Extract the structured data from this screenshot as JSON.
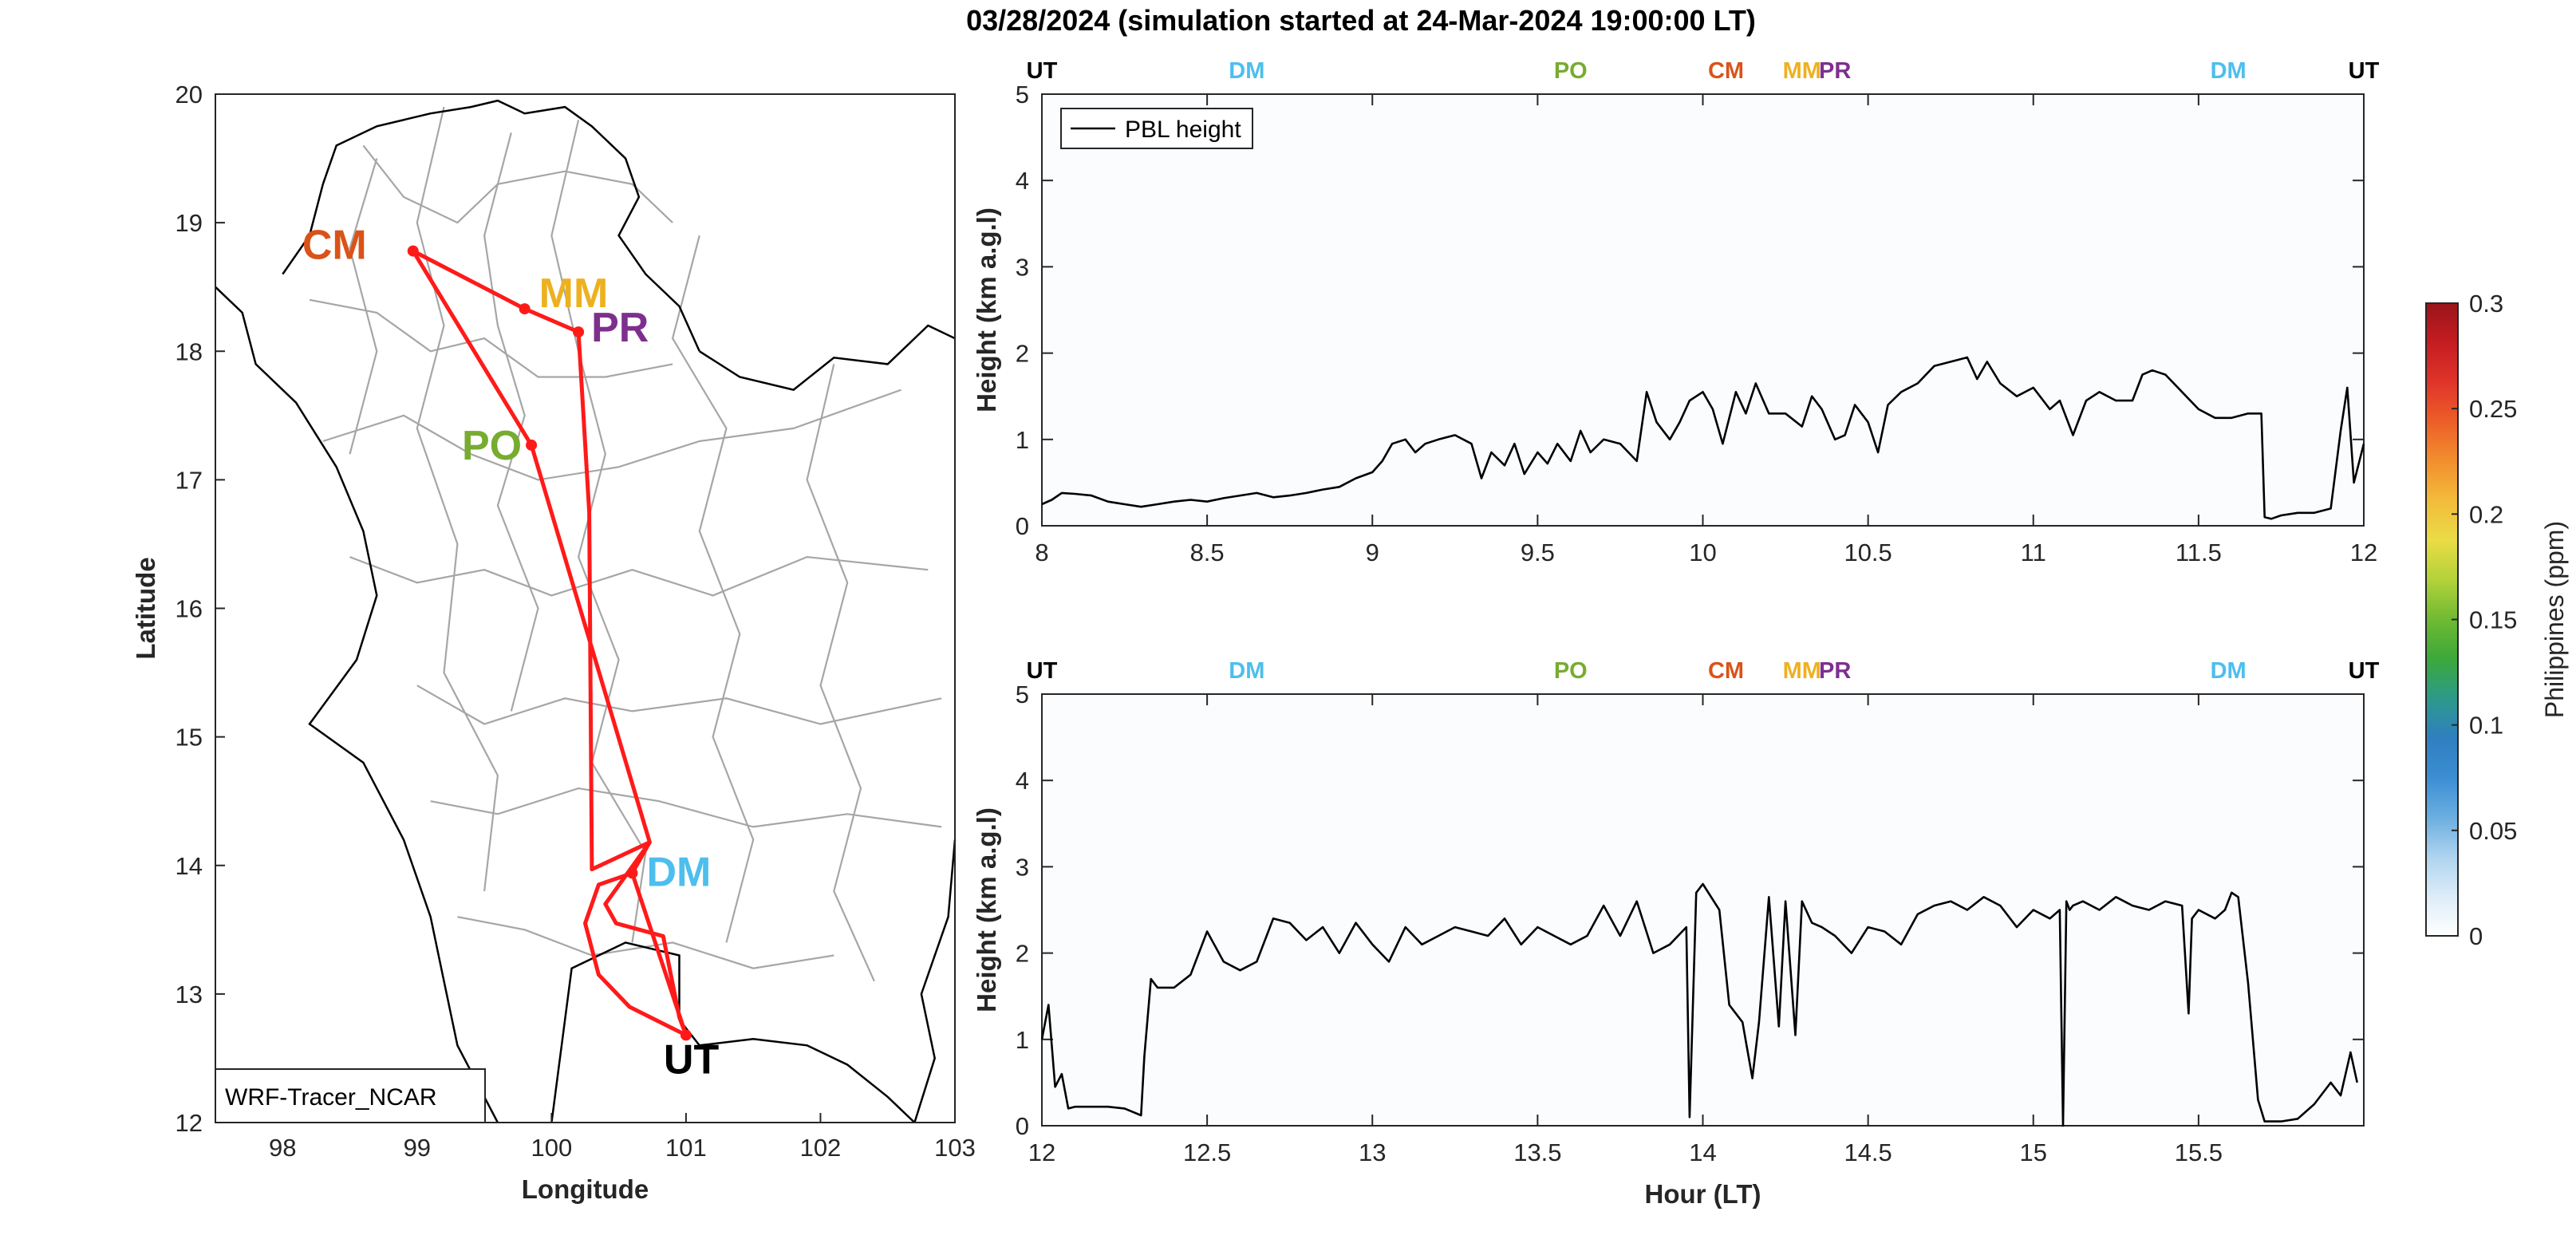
{
  "figure_title": "03/28/2024 (simulation started at 24-Mar-2024 19:00:00 LT)",
  "colors": {
    "track": "#ff1a1a",
    "UT": "#000000",
    "DM": "#4dbeee",
    "PO": "#77ac30",
    "CM": "#d95319",
    "MM": "#edb120",
    "PR": "#7e2f8e",
    "pbl": "#000000",
    "axis": "#262626",
    "border": "#a6a6a6"
  },
  "chart_data": [
    {
      "type": "line",
      "name": "map",
      "xlabel": "Longitude",
      "ylabel": "Latitude",
      "xlim": [
        97.5,
        103
      ],
      "ylim": [
        12,
        20
      ],
      "x_ticks": [
        "98",
        "99",
        "100",
        "101",
        "102",
        "103"
      ],
      "y_ticks": [
        "12",
        "13",
        "14",
        "15",
        "16",
        "17",
        "18",
        "19",
        "20"
      ],
      "legend": "WRF-Tracer_NCAR",
      "sites": [
        {
          "label": "CM",
          "lon": 98.97,
          "lat": 18.78
        },
        {
          "label": "MM",
          "lon": 99.8,
          "lat": 18.33
        },
        {
          "label": "PR",
          "lon": 100.2,
          "lat": 18.15
        },
        {
          "label": "PO",
          "lon": 99.85,
          "lat": 17.27
        },
        {
          "label": "DM",
          "lon": 100.6,
          "lat": 13.94
        },
        {
          "label": "UT",
          "lon": 101.0,
          "lat": 12.68
        }
      ],
      "route": [
        [
          101.0,
          12.68
        ],
        [
          100.6,
          13.94
        ],
        [
          100.73,
          14.18
        ],
        [
          99.85,
          17.27
        ],
        [
          98.97,
          18.78
        ],
        [
          99.8,
          18.33
        ],
        [
          100.2,
          18.15
        ],
        [
          100.28,
          16.75
        ],
        [
          100.3,
          13.97
        ],
        [
          100.73,
          14.18
        ],
        [
          100.4,
          13.7
        ],
        [
          100.48,
          13.55
        ],
        [
          100.83,
          13.45
        ],
        [
          100.95,
          12.82
        ],
        [
          101.0,
          12.68
        ],
        [
          100.58,
          12.9
        ],
        [
          100.35,
          13.15
        ],
        [
          100.25,
          13.55
        ],
        [
          100.35,
          13.85
        ],
        [
          100.6,
          13.94
        ]
      ]
    },
    {
      "type": "line",
      "name": "top",
      "xlim": [
        8,
        12
      ],
      "ylim": [
        0,
        5
      ],
      "ylabel": "Height (km a.g.l)",
      "x_ticks": [
        "8",
        "8.5",
        "9",
        "9.5",
        "10",
        "10.5",
        "11",
        "11.5",
        "12"
      ],
      "y_ticks": [
        "0",
        "1",
        "2",
        "3",
        "4",
        "5"
      ],
      "legend": "PBL height",
      "site_markers": [
        {
          "label": "UT",
          "x": 8.0
        },
        {
          "label": "DM",
          "x": 8.62
        },
        {
          "label": "PO",
          "x": 9.6
        },
        {
          "label": "CM",
          "x": 10.07
        },
        {
          "label": "MM",
          "x": 10.3
        },
        {
          "label": "PR",
          "x": 10.4
        },
        {
          "label": "DM",
          "x": 11.59
        },
        {
          "label": "UT",
          "x": 12.0
        }
      ],
      "series": [
        {
          "name": "PBL height",
          "x": [
            8.0,
            8.03,
            8.06,
            8.1,
            8.15,
            8.2,
            8.25,
            8.3,
            8.35,
            8.4,
            8.45,
            8.5,
            8.55,
            8.6,
            8.65,
            8.7,
            8.75,
            8.8,
            8.85,
            8.9,
            8.95,
            9.0,
            9.03,
            9.06,
            9.1,
            9.13,
            9.16,
            9.2,
            9.25,
            9.3,
            9.33,
            9.36,
            9.4,
            9.43,
            9.46,
            9.5,
            9.53,
            9.56,
            9.6,
            9.63,
            9.66,
            9.7,
            9.75,
            9.8,
            9.83,
            9.86,
            9.9,
            9.93,
            9.96,
            10.0,
            10.03,
            10.06,
            10.1,
            10.13,
            10.16,
            10.2,
            10.25,
            10.3,
            10.33,
            10.36,
            10.4,
            10.43,
            10.46,
            10.5,
            10.53,
            10.56,
            10.6,
            10.65,
            10.7,
            10.75,
            10.8,
            10.83,
            10.86,
            10.9,
            10.95,
            11.0,
            11.05,
            11.08,
            11.12,
            11.16,
            11.2,
            11.25,
            11.3,
            11.33,
            11.36,
            11.4,
            11.45,
            11.5,
            11.55,
            11.6,
            11.65,
            11.69,
            11.7,
            11.72,
            11.75,
            11.8,
            11.85,
            11.9,
            11.93,
            11.95,
            11.97,
            12.0
          ],
          "y": [
            0.25,
            0.3,
            0.38,
            0.37,
            0.35,
            0.28,
            0.25,
            0.22,
            0.25,
            0.28,
            0.3,
            0.28,
            0.32,
            0.35,
            0.38,
            0.33,
            0.35,
            0.38,
            0.42,
            0.45,
            0.55,
            0.62,
            0.75,
            0.95,
            1.0,
            0.85,
            0.95,
            1.0,
            1.05,
            0.95,
            0.55,
            0.85,
            0.7,
            0.95,
            0.6,
            0.85,
            0.72,
            0.95,
            0.75,
            1.1,
            0.85,
            1.0,
            0.95,
            0.75,
            1.55,
            1.2,
            1.0,
            1.2,
            1.45,
            1.55,
            1.35,
            0.95,
            1.55,
            1.3,
            1.65,
            1.3,
            1.3,
            1.15,
            1.5,
            1.35,
            1.0,
            1.05,
            1.4,
            1.2,
            0.85,
            1.4,
            1.55,
            1.65,
            1.85,
            1.9,
            1.95,
            1.7,
            1.9,
            1.65,
            1.5,
            1.6,
            1.35,
            1.45,
            1.05,
            1.45,
            1.55,
            1.45,
            1.45,
            1.75,
            1.8,
            1.75,
            1.55,
            1.35,
            1.25,
            1.25,
            1.3,
            1.3,
            0.1,
            0.08,
            0.12,
            0.15,
            0.15,
            0.2,
            1.1,
            1.6,
            0.5,
            0.95
          ]
        }
      ]
    },
    {
      "type": "line",
      "name": "bottom",
      "xlim": [
        12,
        16
      ],
      "ylim": [
        0,
        5
      ],
      "xlabel": "Hour (LT)",
      "ylabel": "Height (km a.g.l)",
      "x_ticks": [
        "12",
        "12.5",
        "13",
        "13.5",
        "14",
        "14.5",
        "15",
        "15.5"
      ],
      "y_ticks": [
        "0",
        "1",
        "2",
        "3",
        "4",
        "5"
      ],
      "site_markers": [
        {
          "label": "UT",
          "x": 12.0
        },
        {
          "label": "DM",
          "x": 12.62
        },
        {
          "label": "PO",
          "x": 13.6
        },
        {
          "label": "CM",
          "x": 14.07
        },
        {
          "label": "MM",
          "x": 14.3
        },
        {
          "label": "PR",
          "x": 14.4
        },
        {
          "label": "DM",
          "x": 15.59
        },
        {
          "label": "UT",
          "x": 16.0
        }
      ],
      "series": [
        {
          "name": "PBL height",
          "x": [
            12.0,
            12.02,
            12.04,
            12.06,
            12.08,
            12.1,
            12.2,
            12.25,
            12.3,
            12.31,
            12.33,
            12.35,
            12.4,
            12.45,
            12.5,
            12.55,
            12.6,
            12.65,
            12.7,
            12.75,
            12.8,
            12.85,
            12.9,
            12.95,
            13.0,
            13.05,
            13.1,
            13.15,
            13.2,
            13.25,
            13.3,
            13.35,
            13.4,
            13.45,
            13.5,
            13.55,
            13.6,
            13.65,
            13.7,
            13.75,
            13.8,
            13.85,
            13.9,
            13.95,
            13.96,
            13.98,
            14.0,
            14.05,
            14.08,
            14.12,
            14.15,
            14.17,
            14.2,
            14.23,
            14.25,
            14.28,
            14.3,
            14.33,
            14.36,
            14.4,
            14.45,
            14.5,
            14.55,
            14.6,
            14.65,
            14.7,
            14.75,
            14.8,
            14.85,
            14.9,
            14.95,
            15.0,
            15.05,
            15.08,
            15.09,
            15.1,
            15.11,
            15.12,
            15.15,
            15.2,
            15.25,
            15.3,
            15.35,
            15.4,
            15.45,
            15.47,
            15.48,
            15.5,
            15.55,
            15.58,
            15.6,
            15.62,
            15.65,
            15.68,
            15.7,
            15.75,
            15.8,
            15.85,
            15.9,
            15.93,
            15.96,
            15.98
          ],
          "y": [
            1.0,
            1.4,
            0.45,
            0.6,
            0.2,
            0.22,
            0.22,
            0.2,
            0.12,
            0.8,
            1.7,
            1.6,
            1.6,
            1.75,
            2.25,
            1.9,
            1.8,
            1.9,
            2.4,
            2.35,
            2.15,
            2.3,
            2.0,
            2.35,
            2.1,
            1.9,
            2.3,
            2.1,
            2.2,
            2.3,
            2.25,
            2.2,
            2.4,
            2.1,
            2.3,
            2.2,
            2.1,
            2.2,
            2.55,
            2.2,
            2.6,
            2.0,
            2.1,
            2.3,
            0.1,
            2.7,
            2.8,
            2.5,
            1.4,
            1.2,
            0.55,
            1.2,
            2.65,
            1.15,
            2.6,
            1.05,
            2.6,
            2.35,
            2.3,
            2.2,
            2.0,
            2.3,
            2.25,
            2.1,
            2.45,
            2.55,
            2.6,
            2.5,
            2.65,
            2.55,
            2.3,
            2.5,
            2.4,
            2.5,
            0.0,
            2.6,
            2.5,
            2.55,
            2.6,
            2.5,
            2.65,
            2.55,
            2.5,
            2.6,
            2.55,
            1.3,
            2.4,
            2.5,
            2.4,
            2.5,
            2.7,
            2.65,
            1.65,
            0.3,
            0.05,
            0.05,
            0.08,
            0.25,
            0.5,
            0.35,
            0.85,
            0.5
          ]
        }
      ]
    },
    {
      "type": "heatmap",
      "name": "colorbar",
      "label": "Philippines (ppm)",
      "range": [
        0,
        0.3
      ],
      "ticks": [
        "0",
        "0.05",
        "0.1",
        "0.15",
        "0.2",
        "0.25",
        "0.3"
      ],
      "colormap": [
        "#ffffff",
        "#dcecf8",
        "#aed3ef",
        "#6aaee0",
        "#3b8ed3",
        "#2f7fc0",
        "#2c9a8a",
        "#3ca83a",
        "#6fba32",
        "#b3d23a",
        "#eadc45",
        "#f3bb3b",
        "#f28f2e",
        "#ec5f28",
        "#e0342a",
        "#c41d22",
        "#9a1419"
      ]
    }
  ]
}
